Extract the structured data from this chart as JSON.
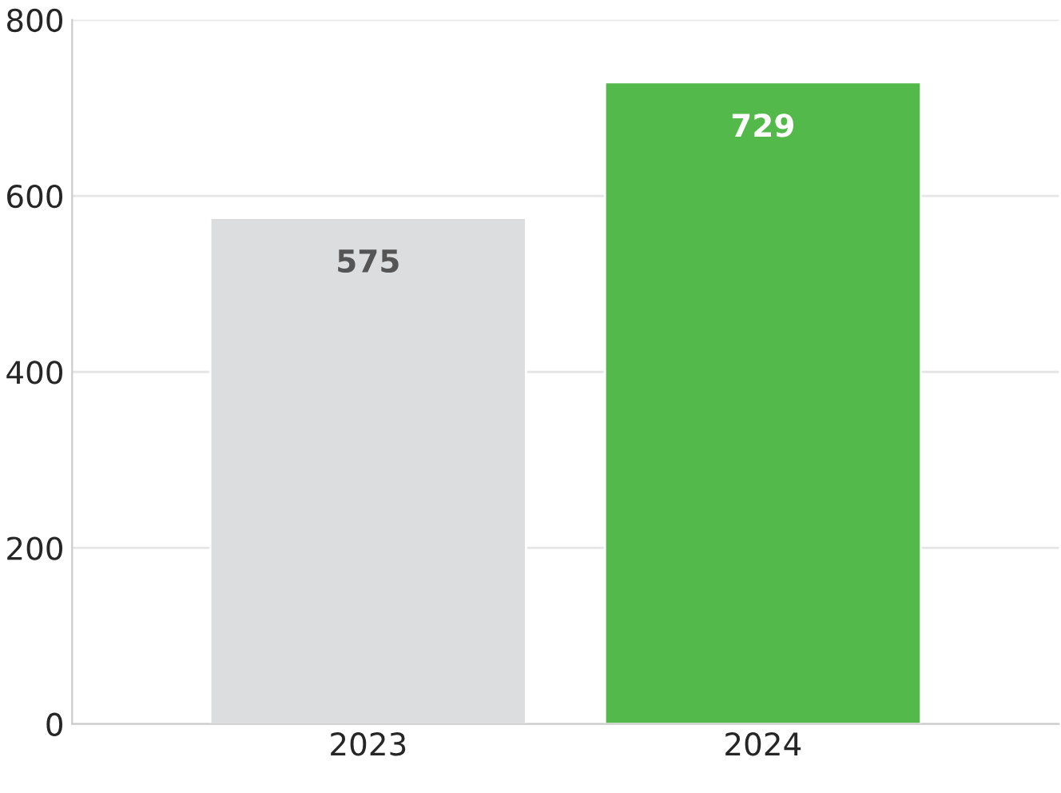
{
  "chart_data": {
    "type": "bar",
    "categories": [
      "2023",
      "2024"
    ],
    "values": [
      575,
      729
    ],
    "colors": [
      "#dcdddf",
      "#52b94a"
    ],
    "ylim": [
      0,
      800
    ],
    "yticks": [
      0,
      200,
      400,
      600,
      800
    ],
    "grid": "y",
    "data_labels": true
  }
}
